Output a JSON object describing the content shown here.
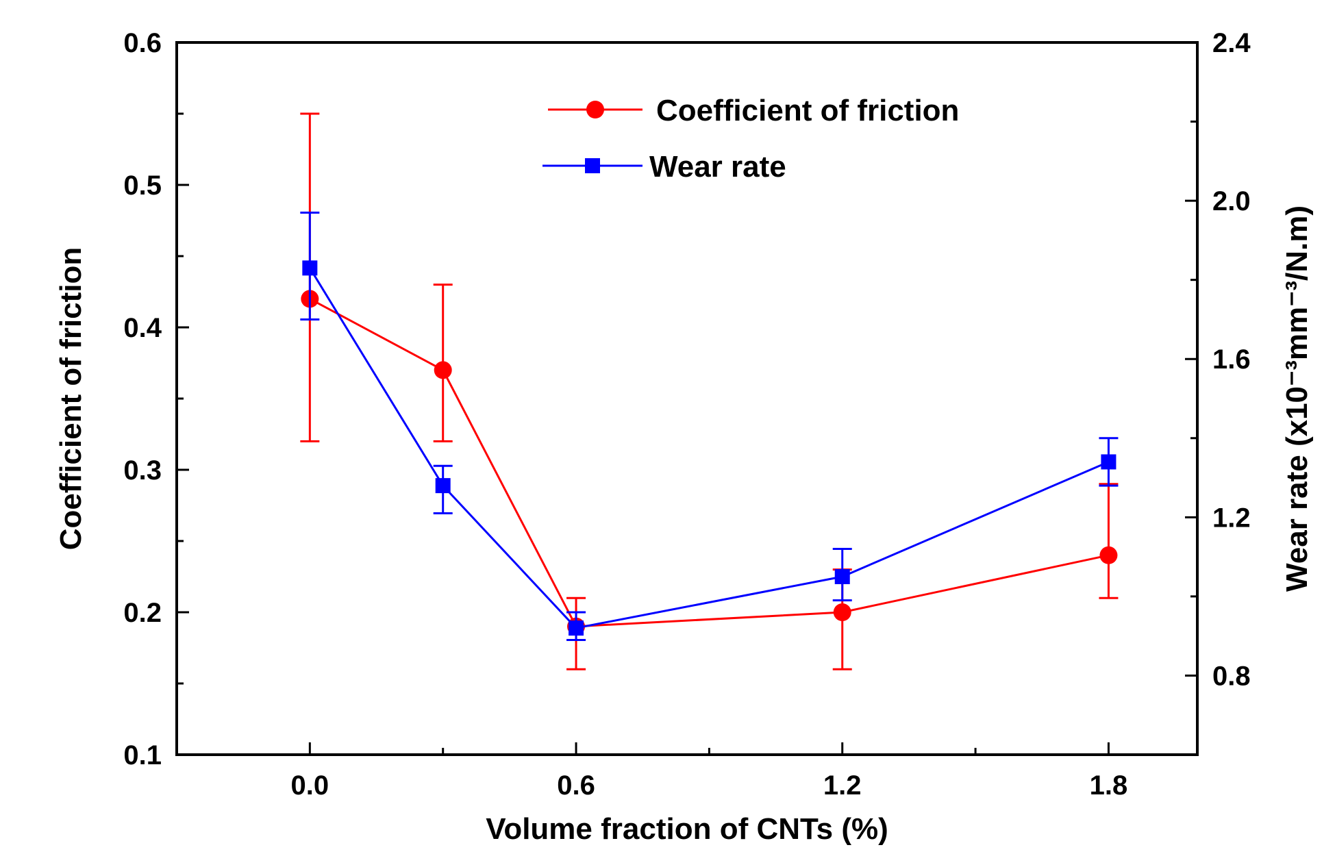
{
  "chart_data": {
    "type": "line",
    "title": "",
    "xlabel": "Volume fraction of CNTs (%)",
    "ylabel_left": "Coefficient of friction",
    "ylabel_right": "Wear rate (x10⁻³mm⁻³/N.m)",
    "xlim": [
      -0.3,
      2.0
    ],
    "x_ticks": [
      0.0,
      0.6,
      1.2,
      1.8
    ],
    "x_tick_labels": [
      "0.0",
      "0.6",
      "1.2",
      "1.8"
    ],
    "ylim_left": [
      0.1,
      0.6
    ],
    "y_ticks_left": [
      0.1,
      0.2,
      0.3,
      0.4,
      0.5,
      0.6
    ],
    "y_tick_labels_left": [
      "0.1",
      "0.2",
      "0.3",
      "0.4",
      "0.5",
      "0.6"
    ],
    "ylim_right": [
      0.6,
      2.4
    ],
    "y_ticks_right": [
      0.8,
      1.2,
      1.6,
      2.0,
      2.4
    ],
    "y_tick_labels_right": [
      "0.8",
      "1.2",
      "1.6",
      "2.0",
      "2.4"
    ],
    "grid": false,
    "legend_position": "top-center",
    "series": [
      {
        "name": "Coefficient of friction",
        "axis": "left",
        "color": "#ff0000",
        "marker": "circle",
        "x": [
          0.0,
          0.3,
          0.6,
          1.2,
          1.8
        ],
        "y": [
          0.42,
          0.37,
          0.19,
          0.2,
          0.24
        ],
        "err_low": [
          0.32,
          0.32,
          0.16,
          0.16,
          0.21
        ],
        "err_high": [
          0.55,
          0.43,
          0.21,
          0.23,
          0.29
        ]
      },
      {
        "name": "Wear rate",
        "axis": "right",
        "color": "#0000ff",
        "marker": "square",
        "x": [
          0.0,
          0.3,
          0.6,
          1.2,
          1.8
        ],
        "y": [
          1.83,
          1.28,
          0.92,
          1.05,
          1.34
        ],
        "err_low": [
          1.7,
          1.21,
          0.89,
          0.99,
          1.28
        ],
        "err_high": [
          1.97,
          1.33,
          0.96,
          1.12,
          1.4
        ]
      }
    ]
  }
}
